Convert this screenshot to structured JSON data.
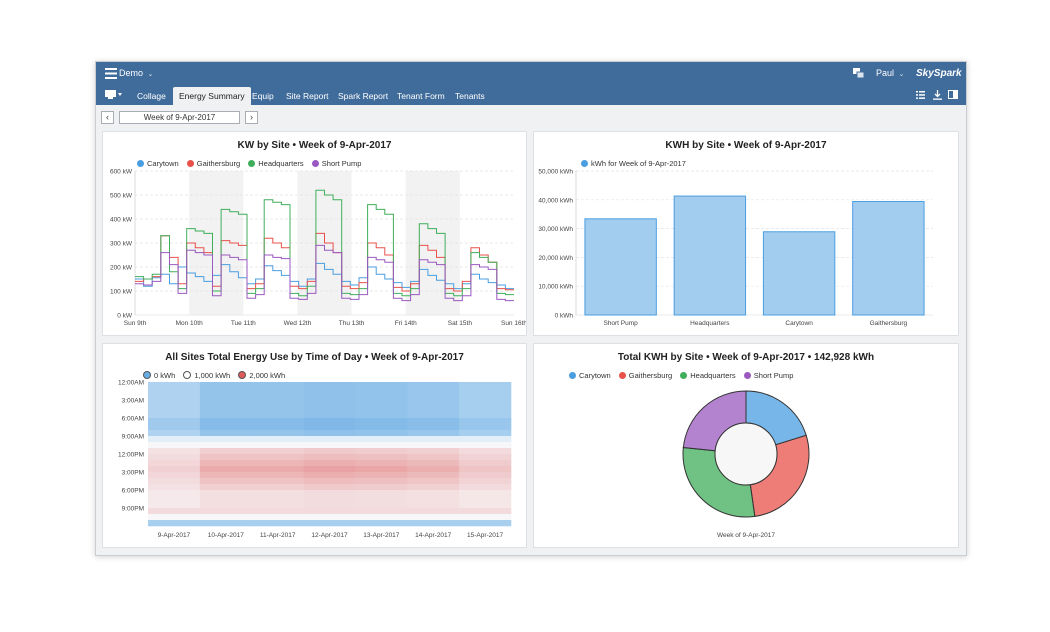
{
  "app": {
    "workspace": "Demo",
    "user": "Paul",
    "brand": "SkySpark",
    "accent": "#406c9b"
  },
  "nav": {
    "tabs": [
      "Collage",
      "Energy Summary",
      "Equip",
      "Site Report",
      "Spark Report",
      "Tenant Form",
      "Tenants"
    ],
    "active": "Energy Summary"
  },
  "date_selector": {
    "label": "Week of 9-Apr-2017"
  },
  "colors": {
    "Carytown": "#4a9ee0",
    "Gaithersburg": "#e8504a",
    "Headquarters": "#3fae5a",
    "Short Pump": "#9a59c0"
  },
  "chart_data": [
    {
      "id": "kw",
      "type": "line",
      "title": "KW by Site • Week of 9-Apr-2017",
      "series": [
        {
          "name": "Carytown",
          "values": [
            150,
            120,
            155,
            170,
            130,
            200,
            175,
            160,
            140,
            165,
            210,
            180,
            155,
            130,
            150,
            205,
            185,
            165,
            140,
            120,
            150,
            215,
            190,
            170,
            140,
            125,
            155,
            200,
            170,
            150,
            135,
            115,
            140,
            190,
            165,
            145,
            130,
            110,
            130,
            170,
            150,
            135,
            125,
            110
          ]
        },
        {
          "name": "Gaithersburg",
          "values": [
            140,
            150,
            160,
            330,
            240,
            130,
            300,
            280,
            260,
            120,
            310,
            300,
            290,
            110,
            130,
            320,
            300,
            280,
            120,
            110,
            140,
            340,
            300,
            260,
            120,
            110,
            135,
            300,
            280,
            250,
            115,
            100,
            130,
            290,
            270,
            240,
            110,
            100,
            140,
            280,
            250,
            220,
            110,
            105
          ]
        },
        {
          "name": "Headquarters",
          "values": [
            160,
            150,
            170,
            330,
            180,
            110,
            360,
            350,
            340,
            100,
            440,
            430,
            420,
            90,
            110,
            480,
            470,
            460,
            90,
            80,
            120,
            520,
            500,
            480,
            90,
            85,
            110,
            460,
            440,
            420,
            90,
            80,
            110,
            380,
            360,
            340,
            90,
            80,
            110,
            260,
            240,
            220,
            90,
            85
          ]
        },
        {
          "name": "Short Pump",
          "values": [
            130,
            125,
            140,
            260,
            210,
            90,
            270,
            260,
            250,
            80,
            250,
            240,
            230,
            70,
            85,
            250,
            240,
            235,
            70,
            65,
            90,
            290,
            270,
            260,
            70,
            65,
            85,
            240,
            230,
            220,
            70,
            60,
            85,
            230,
            220,
            210,
            70,
            60,
            80,
            210,
            200,
            190,
            65,
            60
          ]
        }
      ],
      "x_ticks": [
        "Sun 9th",
        "Mon 10th",
        "Tue 11th",
        "Wed 12th",
        "Thu 13th",
        "Fri 14th",
        "Sat 15th",
        "Sun 16th"
      ],
      "y_ticks": [
        "0 kW",
        "100 kW",
        "200 kW",
        "300 kW",
        "400 kW",
        "500 kW",
        "600 kW"
      ],
      "ylim": [
        0,
        600
      ]
    },
    {
      "id": "kwh",
      "type": "bar",
      "title": "KWH by Site • Week of 9-Apr-2017",
      "legend": "kWh for Week of 9-Apr-2017",
      "categories": [
        "Short Pump",
        "Headquarters",
        "Carytown",
        "Gaithersburg"
      ],
      "values": [
        33400,
        41300,
        28900,
        39400
      ],
      "y_ticks": [
        "0 kWh",
        "10,000 kWh",
        "20,000 kWh",
        "30,000 kWh",
        "40,000 kWh",
        "50,000 kWh"
      ],
      "ylim": [
        0,
        50000
      ]
    },
    {
      "id": "heatmap",
      "type": "heatmap",
      "title": "All Sites Total Energy Use by Time of Day • Week of 9-Apr-2017",
      "legend": [
        {
          "label": "0 kWh",
          "color": "#6aaee6"
        },
        {
          "label": "1,000 kWh",
          "color": "#ffffff"
        },
        {
          "label": "2,000 kWh",
          "color": "#e05a5a"
        }
      ],
      "days": [
        "9-Apr-2017",
        "10-Apr-2017",
        "11-Apr-2017",
        "12-Apr-2017",
        "13-Apr-2017",
        "14-Apr-2017",
        "15-Apr-2017"
      ],
      "y_ticks": [
        "12:00AM",
        "3:00AM",
        "6:00AM",
        "9:00AM",
        "12:00PM",
        "3:00PM",
        "6:00PM",
        "9:00PM"
      ],
      "day_level": [
        0.4,
        0.85,
        0.85,
        0.95,
        0.9,
        0.8,
        0.55
      ]
    },
    {
      "id": "donut",
      "type": "pie",
      "title": "Total KWH by Site • Week of 9-Apr-2017 • 142,928 kWh",
      "categories": [
        "Carytown",
        "Gaithersburg",
        "Headquarters",
        "Short Pump"
      ],
      "values": [
        28900,
        39400,
        41300,
        33400
      ],
      "xlabel": "Week of 9-Apr-2017"
    }
  ]
}
